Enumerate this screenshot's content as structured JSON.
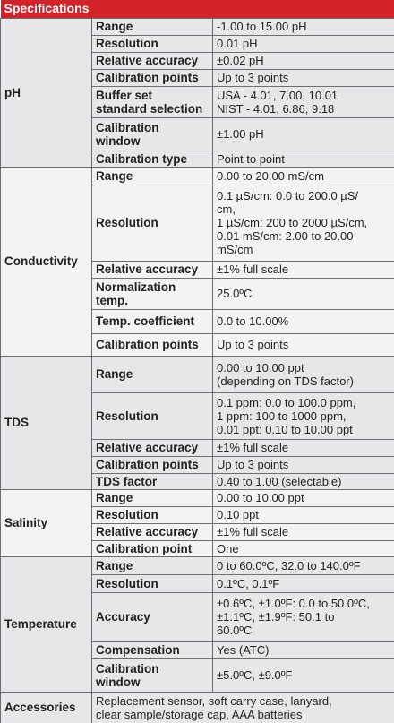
{
  "title": "Specifications",
  "sections": [
    {
      "name": "pH",
      "rows": [
        {
          "label": "Range",
          "value": "-1.00 to 15.00 pH"
        },
        {
          "label": "Resolution",
          "value": "0.01 pH"
        },
        {
          "label": "Relative accuracy",
          "value": "±0.02 pH"
        },
        {
          "label": "Calibration points",
          "value": "Up to 3 points"
        },
        {
          "label": [
            "Buffer set",
            "standard selection"
          ],
          "value": [
            "USA - 4.01, 7.00, 10.01",
            "NIST - 4.01, 6.86, 9.18"
          ]
        },
        {
          "label": [
            "Calibration",
            "window"
          ],
          "value": "±1.00 pH"
        },
        {
          "label": "Calibration type",
          "value": "Point to point"
        }
      ]
    },
    {
      "name": "Conductivity",
      "rows": [
        {
          "label": "Range",
          "value": "0.00 to 20.00 mS/cm"
        },
        {
          "label": "Resolution",
          "value": [
            "0.1 µS/cm: 0.0 to 200.0 µS/",
            "cm,",
            "1 µS/cm: 200 to 2000 µS/cm,",
            "0.01 mS/cm: 2.00 to 20.00",
            "mS/cm"
          ]
        },
        {
          "label": "Relative accuracy",
          "value": "±1% full scale"
        },
        {
          "label": [
            "Normalization",
            "temp."
          ],
          "value": "25.0ºC"
        },
        {
          "label": "Temp. coefficient",
          "value": "0.0 to 10.00%"
        },
        {
          "label": "Calibration points",
          "value": "Up to 3 points"
        }
      ]
    },
    {
      "name": "TDS",
      "rows": [
        {
          "label": "Range",
          "value": [
            "0.00 to 10.00 ppt",
            "(depending on TDS factor)"
          ]
        },
        {
          "label": "Resolution",
          "value": [
            "0.1 ppm: 0.0 to 100.0 ppm,",
            "1 ppm: 100 to 1000 ppm,",
            "0.01 ppt: 0.10 to 10.00 ppt"
          ]
        },
        {
          "label": "Relative accuracy",
          "value": "±1% full scale"
        },
        {
          "label": "Calibration points",
          "value": "Up to 3 points"
        },
        {
          "label": "TDS factor",
          "value": "0.40 to 1.00 (selectable)"
        }
      ]
    },
    {
      "name": "Salinity",
      "rows": [
        {
          "label": "Range",
          "value": "0.00 to 10.00 ppt"
        },
        {
          "label": "Resolution",
          "value": "0.10 ppt"
        },
        {
          "label": "Relative accuracy",
          "value": "±1% full scale"
        },
        {
          "label": "Calibration point",
          "value": "One"
        }
      ]
    },
    {
      "name": "Temperature",
      "rows": [
        {
          "label": "Range",
          "value": "0 to 60.0ºC, 32.0 to 140.0ºF"
        },
        {
          "label": "Resolution",
          "value": "0.1ºC, 0.1ºF"
        },
        {
          "label": "Accuracy",
          "value": [
            "±0.6ºC, ±1.0ºF: 0.0 to 50.0ºC,",
            "±1.1ºC, ±1.9ºF: 50.1 to",
            "60.0ºC"
          ]
        },
        {
          "label": "Compensation",
          "value": "Yes (ATC)"
        },
        {
          "label": [
            "Calibration",
            "window"
          ],
          "value": "±5.0ºC, ±9.0ºF"
        }
      ]
    }
  ],
  "accessories": {
    "name": "Accessories",
    "value": [
      "Replacement sensor, soft carry case, lanyard,",
      "clear sample/storage cap, AAA batteries"
    ]
  }
}
